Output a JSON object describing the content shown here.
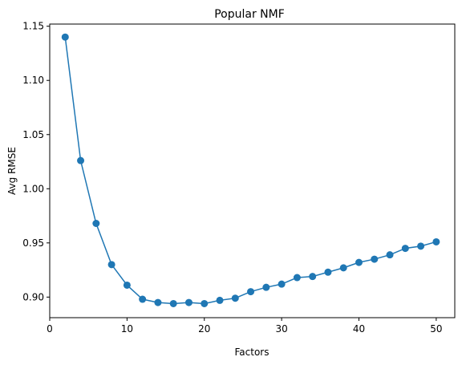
{
  "chart_data": {
    "type": "line",
    "title": "Popular NMF",
    "xlabel": "Factors",
    "ylabel": "Avg RMSE",
    "xlim": [
      0,
      52.4
    ],
    "ylim": [
      0.881,
      1.152
    ],
    "x_ticks": [
      0,
      10,
      20,
      30,
      40,
      50
    ],
    "x_tick_labels": [
      "0",
      "10",
      "20",
      "30",
      "40",
      "50"
    ],
    "y_ticks": [
      0.9,
      0.95,
      1.0,
      1.05,
      1.1,
      1.15
    ],
    "y_tick_labels": [
      "0.90",
      "0.95",
      "1.00",
      "1.05",
      "1.10",
      "1.15"
    ],
    "grid": false,
    "marker": "circle",
    "color": "#1f77b4",
    "series": [
      {
        "x": [
          2,
          4,
          6,
          8,
          10,
          12,
          14,
          16,
          18,
          20,
          22,
          24,
          26,
          28,
          30,
          32,
          34,
          36,
          38,
          40,
          42,
          44,
          46,
          48,
          50
        ],
        "values": [
          1.14,
          1.026,
          0.968,
          0.93,
          0.911,
          0.898,
          0.895,
          0.894,
          0.895,
          0.894,
          0.897,
          0.899,
          0.905,
          0.909,
          0.912,
          0.918,
          0.919,
          0.923,
          0.927,
          0.932,
          0.935,
          0.939,
          0.945,
          0.947,
          0.951
        ]
      }
    ]
  }
}
